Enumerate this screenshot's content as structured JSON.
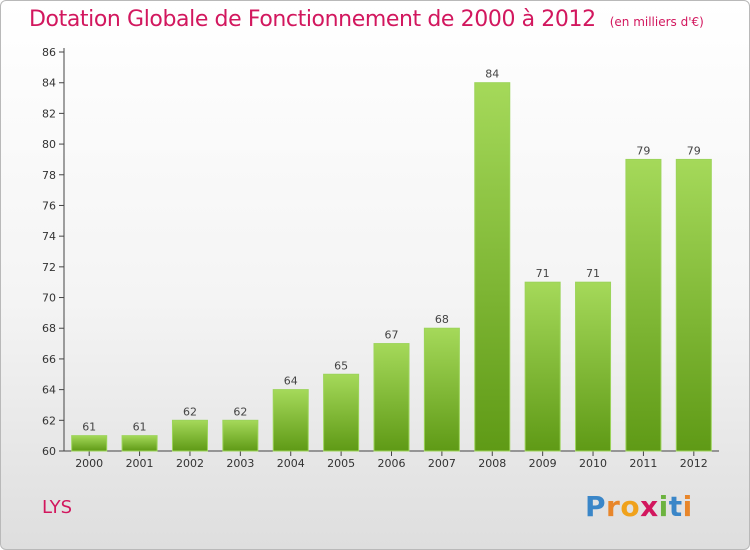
{
  "title": "Dotation Globale de Fonctionnement de 2000 à 2012",
  "subtitle": "(en milliers d'€)",
  "commune": "LYS",
  "logo": "Proxiti",
  "chart_data": {
    "type": "bar",
    "categories": [
      "2000",
      "2001",
      "2002",
      "2003",
      "2004",
      "2005",
      "2006",
      "2007",
      "2008",
      "2009",
      "2010",
      "2011",
      "2012"
    ],
    "values": [
      61,
      61,
      62,
      62,
      64,
      65,
      67,
      68,
      84,
      71,
      71,
      79,
      79
    ],
    "title": "Dotation Globale de Fonctionnement de 2000 à 2012",
    "subtitle": "(en milliers d'€)",
    "xlabel": "",
    "ylabel": "",
    "ylim": [
      60,
      86
    ],
    "yticks": [
      60,
      62,
      64,
      66,
      68,
      70,
      72,
      74,
      76,
      78,
      80,
      82,
      84,
      86
    ],
    "grid": false,
    "bar_color": "#7fbb2e",
    "bar_color_light": "#a5d95a",
    "bar_color_dark": "#5f9a16"
  }
}
